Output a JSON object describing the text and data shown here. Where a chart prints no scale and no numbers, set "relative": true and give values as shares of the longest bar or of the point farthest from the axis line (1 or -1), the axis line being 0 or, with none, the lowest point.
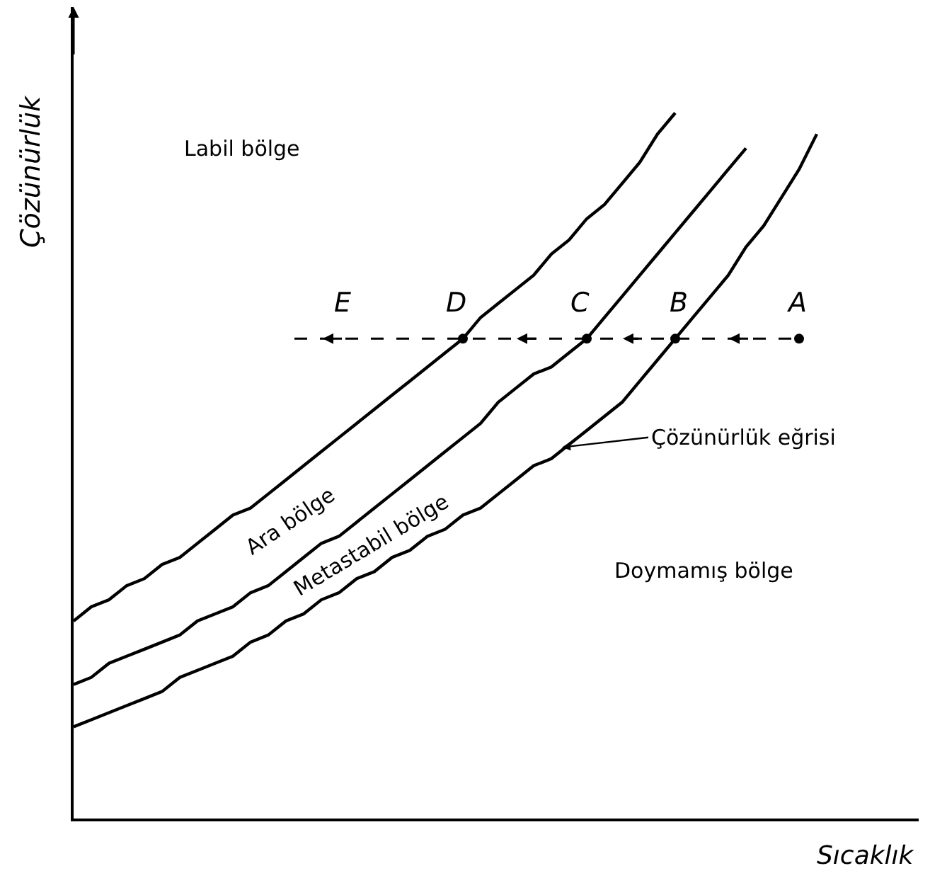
{
  "chart_data": {
    "type": "line",
    "relative": true,
    "xlabel": "Sıcaklık",
    "ylabel": "Çözünürlük",
    "categories": [
      null,
      null,
      null,
      null,
      null,
      null,
      null,
      null,
      null,
      null,
      null,
      null,
      null,
      null,
      null,
      null,
      null,
      null,
      null,
      null,
      null,
      null,
      null,
      null,
      null,
      null,
      null,
      null,
      null,
      null,
      null,
      null,
      null,
      null,
      null,
      null,
      null,
      null,
      null,
      null,
      null,
      null,
      null,
      null,
      null
    ],
    "series": [
      {
        "color": "#000000",
        "values": [
          0.28,
          0.3,
          0.31,
          0.33,
          0.34,
          0.36,
          0.37,
          0.39,
          0.41,
          0.43,
          0.44,
          0.46,
          0.48,
          0.5,
          0.52,
          0.54,
          0.56,
          0.58,
          0.6,
          0.62,
          0.64,
          0.66,
          0.68,
          0.71,
          0.73,
          0.75,
          0.77,
          0.8,
          0.82,
          0.85,
          0.87,
          0.9,
          0.93,
          0.97,
          1.0,
          null,
          null,
          null,
          null,
          null,
          null,
          null,
          null,
          null,
          null
        ]
      },
      {
        "color": "#000000",
        "values": [
          0.19,
          0.2,
          0.22,
          0.23,
          0.24,
          0.25,
          0.26,
          0.28,
          0.29,
          0.3,
          0.32,
          0.33,
          0.35,
          0.37,
          0.39,
          0.4,
          0.42,
          0.44,
          0.46,
          0.48,
          0.5,
          0.52,
          0.54,
          0.56,
          0.59,
          0.61,
          0.63,
          0.64,
          0.66,
          0.68,
          0.71,
          0.74,
          0.77,
          0.8,
          0.83,
          0.86,
          0.89,
          0.92,
          0.95,
          null,
          null,
          null,
          null,
          null,
          null
        ]
      },
      {
        "color": "#000000",
        "values": [
          0.13,
          0.14,
          0.15,
          0.16,
          0.17,
          0.18,
          0.2,
          0.21,
          0.22,
          0.23,
          0.25,
          0.26,
          0.28,
          0.29,
          0.31,
          0.32,
          0.34,
          0.35,
          0.37,
          0.38,
          0.4,
          0.41,
          0.43,
          0.44,
          0.46,
          0.48,
          0.5,
          0.51,
          0.53,
          0.55,
          0.57,
          0.59,
          0.62,
          0.65,
          0.68,
          0.71,
          0.74,
          0.77,
          0.81,
          0.84,
          0.88,
          0.92,
          0.97,
          null,
          null
        ]
      },
      {
        "color": "#000000",
        "marker": "circle",
        "values": [
          null,
          null,
          null,
          null,
          null,
          null,
          null,
          null,
          null,
          null,
          null,
          null,
          null,
          null,
          null,
          null,
          null,
          null,
          null,
          null,
          null,
          null,
          0.68,
          null,
          null,
          null,
          null,
          null,
          null,
          0.68,
          null,
          null,
          null,
          null,
          0.68,
          null,
          null,
          null,
          null,
          null,
          null,
          0.68,
          null,
          null,
          null
        ]
      }
    ],
    "annotations": [
      "Labil bölge",
      "Ara bölge",
      "Metastabil bölge",
      "Doymamış bölge",
      "Çözünürlük eğrisi",
      "E",
      "D",
      "C",
      "B",
      "A"
    ],
    "ref_lines": [
      {
        "axis": "y",
        "value": 0.68,
        "color": "#000000",
        "line_style": "dashed"
      }
    ],
    "marker": "none",
    "line_style": "solid"
  }
}
